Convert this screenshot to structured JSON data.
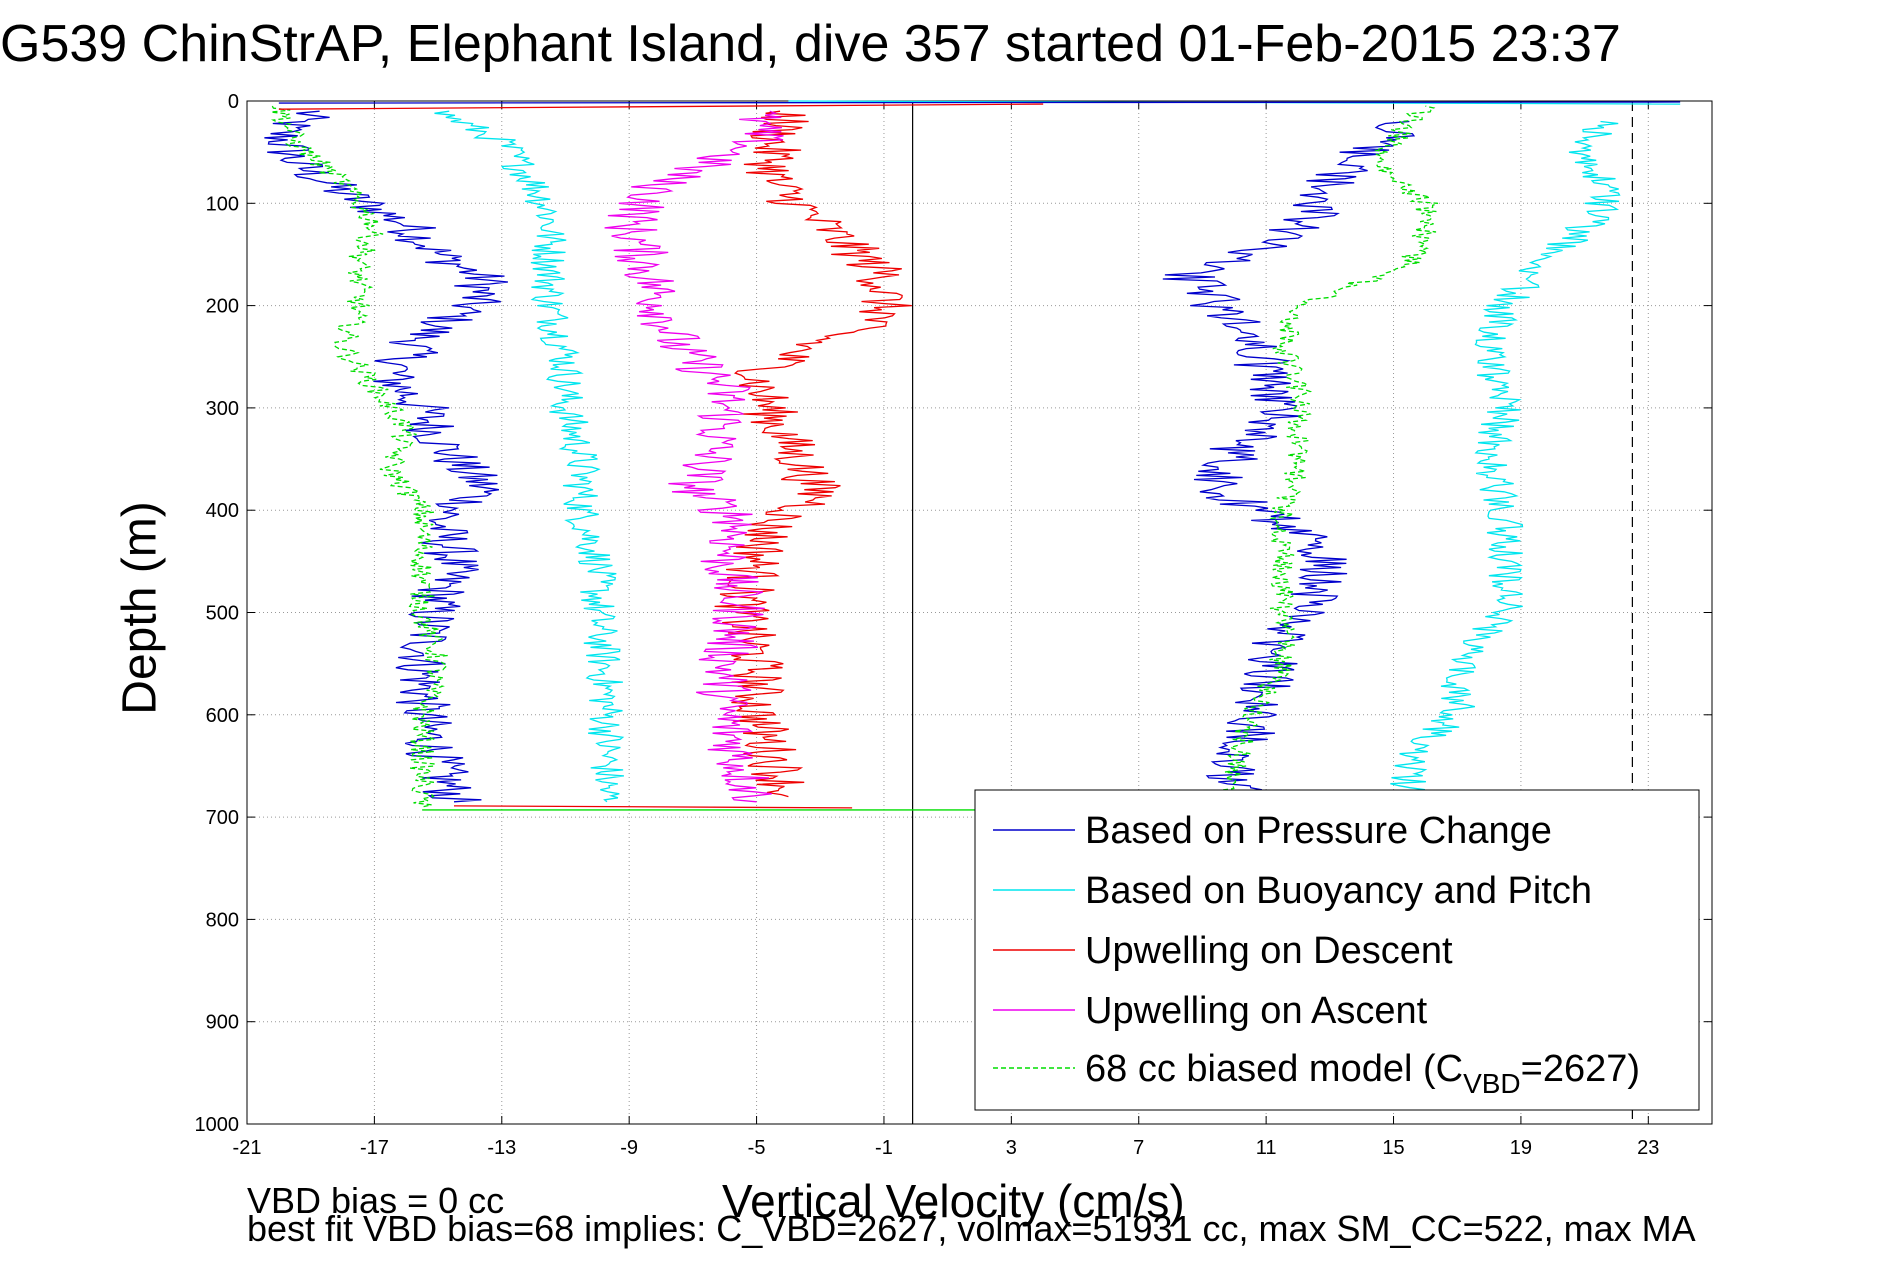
{
  "chart_data": {
    "type": "line",
    "title": "G539 ChinStrAP, Elephant Island, dive 357 started 01-Feb-2015 23:37",
    "xlabel": "Vertical Velocity (cm/s)",
    "ylabel": "Depth (m)",
    "xlim": [
      -21,
      25
    ],
    "ylim": [
      1000,
      0
    ],
    "x_ticks": [
      -21,
      -17,
      -13,
      -9,
      -5,
      -1,
      3,
      7,
      11,
      15,
      19,
      23
    ],
    "y_ticks": [
      0,
      100,
      200,
      300,
      400,
      500,
      600,
      700,
      800,
      900,
      1000
    ],
    "grid": true,
    "legend_position": "bottom-right",
    "zero_line_x": -0.1,
    "max_line_x": 22.5,
    "depth_max": 693,
    "series": [
      {
        "name": "Based on Pressure Change",
        "color": "#0000cc",
        "style": "solid",
        "descent": [
          [
            -19.0,
            10
          ],
          [
            -20.0,
            30
          ],
          [
            -19.5,
            60
          ],
          [
            -18.0,
            90
          ],
          [
            -16.0,
            120
          ],
          [
            -15.0,
            150
          ],
          [
            -13.5,
            175
          ],
          [
            -14.0,
            200
          ],
          [
            -15.5,
            230
          ],
          [
            -16.5,
            270
          ],
          [
            -15.5,
            300
          ],
          [
            -15.0,
            330
          ],
          [
            -14.2,
            360
          ],
          [
            -13.5,
            380
          ],
          [
            -15.0,
            410
          ],
          [
            -14.5,
            450
          ],
          [
            -15.2,
            500
          ],
          [
            -15.5,
            550
          ],
          [
            -15.5,
            600
          ],
          [
            -15.0,
            650
          ],
          [
            -14.5,
            685
          ]
        ],
        "ascent": [
          [
            10.0,
            685
          ],
          [
            10.0,
            650
          ],
          [
            10.5,
            620
          ],
          [
            11.0,
            580
          ],
          [
            11.2,
            540
          ],
          [
            12.0,
            500
          ],
          [
            13.0,
            460
          ],
          [
            12.0,
            420
          ],
          [
            9.5,
            380
          ],
          [
            10.0,
            340
          ],
          [
            11.5,
            310
          ],
          [
            11.0,
            270
          ],
          [
            10.5,
            230
          ],
          [
            9.5,
            200
          ],
          [
            8.5,
            170
          ],
          [
            11.0,
            140
          ],
          [
            12.5,
            110
          ],
          [
            13.0,
            80
          ],
          [
            14.0,
            50
          ],
          [
            15.5,
            20
          ]
        ]
      },
      {
        "name": "Based on Buoyancy and Pitch",
        "color": "#00e5ee",
        "style": "solid",
        "descent": [
          [
            -15.0,
            10
          ],
          [
            -13.0,
            40
          ],
          [
            -12.0,
            80
          ],
          [
            -11.5,
            110
          ],
          [
            -11.5,
            150
          ],
          [
            -11.5,
            200
          ],
          [
            -11.0,
            250
          ],
          [
            -11.0,
            300
          ],
          [
            -10.5,
            350
          ],
          [
            -10.5,
            400
          ],
          [
            -10.0,
            450
          ],
          [
            -10.0,
            500
          ],
          [
            -9.8,
            550
          ],
          [
            -9.7,
            600
          ],
          [
            -9.7,
            650
          ],
          [
            -9.7,
            685
          ]
        ],
        "ascent": [
          [
            15.5,
            685
          ],
          [
            15.5,
            640
          ],
          [
            17.0,
            600
          ],
          [
            17.0,
            550
          ],
          [
            18.5,
            500
          ],
          [
            18.5,
            450
          ],
          [
            18.5,
            400
          ],
          [
            18.0,
            350
          ],
          [
            18.5,
            300
          ],
          [
            18.0,
            250
          ],
          [
            18.5,
            200
          ],
          [
            20.0,
            150
          ],
          [
            21.5,
            110
          ],
          [
            21.5,
            80
          ],
          [
            21.0,
            50
          ],
          [
            21.5,
            20
          ]
        ]
      },
      {
        "name": "Upwelling on Descent",
        "color": "#ee0000",
        "style": "solid",
        "descent": [
          [
            -4.0,
            10
          ],
          [
            -4.5,
            40
          ],
          [
            -4.5,
            80
          ],
          [
            -3.0,
            120
          ],
          [
            -1.0,
            170
          ],
          [
            -1.0,
            210
          ],
          [
            -3.5,
            240
          ],
          [
            -5.0,
            270
          ],
          [
            -4.5,
            310
          ],
          [
            -3.5,
            360
          ],
          [
            -3.0,
            390
          ],
          [
            -4.5,
            410
          ],
          [
            -5.0,
            450
          ],
          [
            -5.5,
            500
          ],
          [
            -5.0,
            550
          ],
          [
            -5.0,
            600
          ],
          [
            -4.5,
            640
          ],
          [
            -4.0,
            680
          ]
        ]
      },
      {
        "name": "Upwelling on Ascent",
        "color": "#ee00ee",
        "style": "solid",
        "descent": [
          [
            -5.0,
            10
          ],
          [
            -5.0,
            40
          ],
          [
            -8.0,
            80
          ],
          [
            -9.0,
            120
          ],
          [
            -8.5,
            160
          ],
          [
            -8.0,
            200
          ],
          [
            -7.5,
            240
          ],
          [
            -6.0,
            280
          ],
          [
            -6.0,
            310
          ],
          [
            -6.5,
            350
          ],
          [
            -7.0,
            380
          ],
          [
            -5.5,
            410
          ],
          [
            -6.0,
            450
          ],
          [
            -5.5,
            500
          ],
          [
            -6.0,
            550
          ],
          [
            -6.0,
            600
          ],
          [
            -5.5,
            650
          ],
          [
            -5.0,
            685
          ]
        ]
      },
      {
        "name": "68 cc biased model (C_VBD=2627)",
        "color": "#00dd00",
        "style": "dashed",
        "descent": [
          [
            -20.0,
            5
          ],
          [
            -19.5,
            40
          ],
          [
            -18.0,
            80
          ],
          [
            -17.0,
            120
          ],
          [
            -17.5,
            160
          ],
          [
            -17.5,
            200
          ],
          [
            -18.0,
            240
          ],
          [
            -17.0,
            280
          ],
          [
            -16.0,
            320
          ],
          [
            -16.5,
            360
          ],
          [
            -15.5,
            400
          ],
          [
            -15.5,
            450
          ],
          [
            -15.5,
            500
          ],
          [
            -15.0,
            550
          ],
          [
            -15.5,
            600
          ],
          [
            -15.5,
            650
          ],
          [
            -15.5,
            690
          ]
        ],
        "ascent": [
          [
            9.5,
            690
          ],
          [
            10.0,
            650
          ],
          [
            10.5,
            600
          ],
          [
            11.5,
            550
          ],
          [
            11.5,
            500
          ],
          [
            11.5,
            450
          ],
          [
            11.5,
            400
          ],
          [
            12.0,
            360
          ],
          [
            12.0,
            320
          ],
          [
            12.0,
            280
          ],
          [
            11.5,
            240
          ],
          [
            12.0,
            200
          ],
          [
            15.5,
            160
          ],
          [
            16.0,
            130
          ],
          [
            16.0,
            100
          ],
          [
            14.5,
            60
          ],
          [
            15.5,
            20
          ],
          [
            16.0,
            5
          ]
        ]
      }
    ],
    "legend_labels": {
      "pressure": "Based on Pressure Change",
      "buoyancy": "Based on Buoyancy and Pitch",
      "up_descent": "Upwelling on Descent",
      "up_ascent": "Upwelling on Ascent",
      "model_prefix": "68 cc biased model (C",
      "model_sub": "VBD",
      "model_suffix": "=2627)"
    }
  },
  "footer": {
    "vbd_bias": "VBD bias = 0 cc",
    "best_fit": "best fit VBD bias=68 implies: C_VBD=2627, volmax=51931 cc, max SM_CC=522, max MA"
  }
}
